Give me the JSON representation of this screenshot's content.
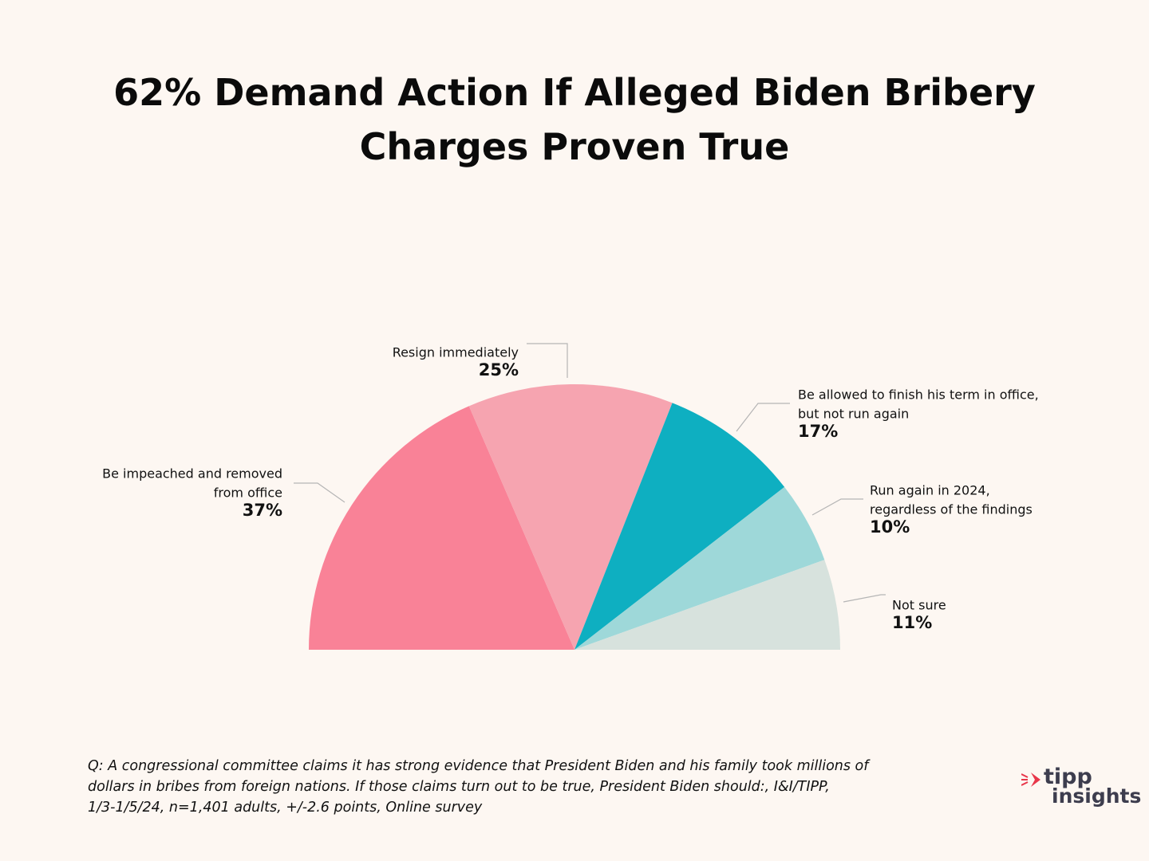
{
  "title": {
    "line1": "62% Demand Action If Alleged Biden Bribery",
    "line2": "Charges Proven True"
  },
  "chart_data": {
    "type": "pie",
    "subtype": "semicircle",
    "title": "62% Demand Action If Alleged Biden Bribery Charges Proven True",
    "unit": "%",
    "slices": [
      {
        "label_lines": [
          "Be impeached and removed",
          "from office"
        ],
        "value": 37,
        "value_label": "37%",
        "color": "#f98297"
      },
      {
        "label_lines": [
          "Resign immediately"
        ],
        "value": 25,
        "value_label": "25%",
        "color": "#f6a4b0"
      },
      {
        "label_lines": [
          "Be allowed to finish his term in office,",
          "but not run again"
        ],
        "value": 17,
        "value_label": "17%",
        "color": "#0eafc1"
      },
      {
        "label_lines": [
          "Run again in 2024,",
          "regardless of the findings"
        ],
        "value": 10,
        "value_label": "10%",
        "color": "#9ed8d9"
      },
      {
        "label_lines": [
          "Not sure"
        ],
        "value": 11,
        "value_label": "11%",
        "color": "#d7e2dd"
      }
    ]
  },
  "footnote": {
    "line1": "Q: A congressional committee claims it has strong evidence that President Biden and his family took millions of",
    "line2": "dollars in bribes from foreign nations. If those claims turn out to be true, President Biden should:, I&I/TIPP,",
    "line3": "1/3-1/5/24, n=1,401 adults, +/-2.6 points,  Online survey"
  },
  "logo": {
    "top": "tipp",
    "bottom": "insights",
    "mark_color": "#e8364a"
  }
}
